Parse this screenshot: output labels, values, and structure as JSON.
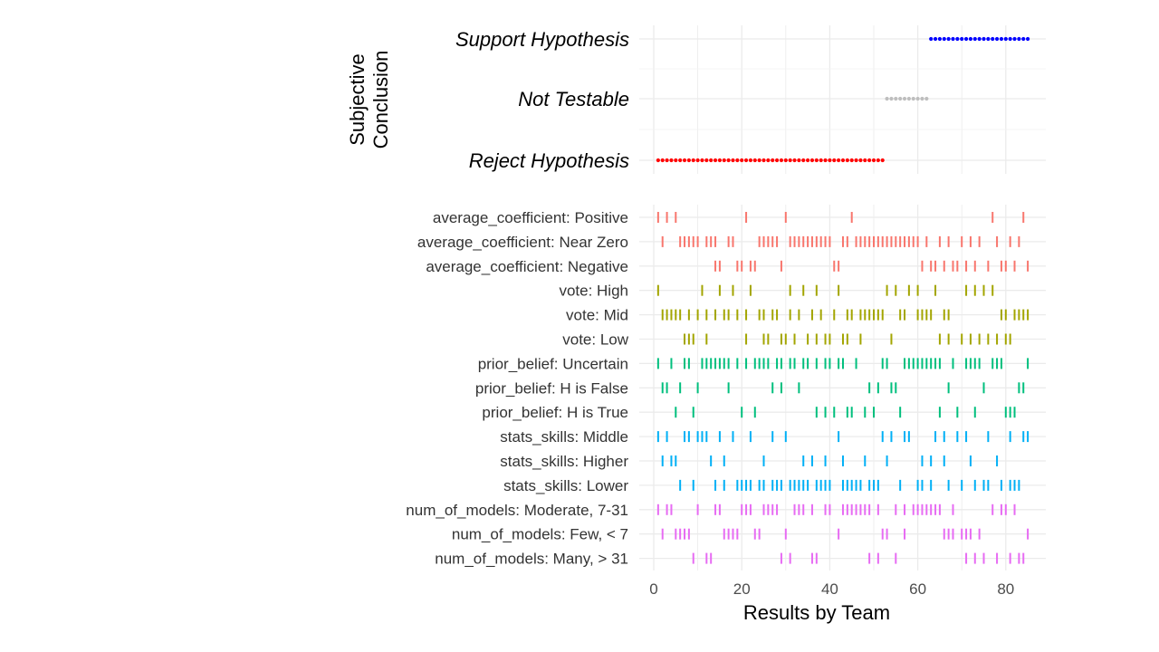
{
  "chart_data": [
    {
      "type": "scatter",
      "title": "",
      "ylabel_lines": [
        "Subjective",
        "Conclusion"
      ],
      "categories": [
        "Support Hypothesis",
        "Not Testable",
        "Reject Hypothesis"
      ],
      "series": [
        {
          "category": "Support Hypothesis",
          "color": "#0000ff",
          "x_range": [
            63,
            85
          ]
        },
        {
          "category": "Not Testable",
          "color": "#bebebe",
          "x_range": [
            53,
            62
          ]
        },
        {
          "category": "Reject Hypothesis",
          "color": "#ff0000",
          "x_range": [
            1,
            52
          ]
        }
      ],
      "xlim": [
        -3,
        89
      ],
      "grid": true
    },
    {
      "type": "scatter",
      "marker": "tick",
      "xlabel": "Results by Team",
      "x_ticks": [
        0,
        20,
        40,
        60,
        80
      ],
      "xlim": [
        -3,
        89
      ],
      "grid": true,
      "rows": [
        {
          "label": "average_coefficient: Positive",
          "color": "#f8766d",
          "x": [
            1,
            3,
            5,
            21,
            30,
            45,
            77,
            84
          ]
        },
        {
          "label": "average_coefficient: Near Zero",
          "color": "#f8766d",
          "x": [
            2,
            6,
            7,
            8,
            9,
            10,
            12,
            13,
            14,
            17,
            18,
            24,
            25,
            26,
            27,
            28,
            31,
            32,
            33,
            34,
            35,
            36,
            37,
            38,
            39,
            40,
            43,
            44,
            46,
            47,
            48,
            49,
            50,
            51,
            52,
            53,
            54,
            55,
            56,
            57,
            58,
            59,
            60,
            62,
            65,
            67,
            70,
            72,
            74,
            78,
            81,
            83
          ]
        },
        {
          "label": "average_coefficient: Negative",
          "color": "#f8766d",
          "x": [
            14,
            15,
            19,
            20,
            22,
            23,
            29,
            41,
            42,
            61,
            63,
            64,
            66,
            68,
            69,
            71,
            73,
            76,
            79,
            80,
            82,
            85
          ]
        },
        {
          "label": "vote: High",
          "color": "#a3a500",
          "x": [
            1,
            11,
            15,
            18,
            22,
            31,
            34,
            37,
            42,
            53,
            55,
            58,
            60,
            64,
            71,
            73,
            75,
            77
          ]
        },
        {
          "label": "vote: Mid",
          "color": "#a3a500",
          "x": [
            2,
            3,
            4,
            5,
            6,
            8,
            10,
            12,
            14,
            16,
            17,
            19,
            21,
            24,
            25,
            27,
            28,
            31,
            33,
            36,
            38,
            41,
            44,
            45,
            47,
            48,
            49,
            50,
            51,
            52,
            56,
            57,
            60,
            61,
            62,
            63,
            66,
            67,
            79,
            80,
            82,
            83,
            84,
            85
          ]
        },
        {
          "label": "vote: Low",
          "color": "#a3a500",
          "x": [
            7,
            8,
            9,
            12,
            21,
            25,
            26,
            29,
            30,
            32,
            35,
            37,
            39,
            40,
            43,
            44,
            47,
            54,
            65,
            67,
            70,
            72,
            74,
            76,
            78,
            80,
            81
          ]
        },
        {
          "label": "prior_belief: Uncertain",
          "color": "#00bf7d",
          "x": [
            1,
            4,
            7,
            8,
            11,
            12,
            13,
            14,
            15,
            16,
            17,
            19,
            21,
            23,
            24,
            25,
            26,
            28,
            29,
            31,
            32,
            34,
            35,
            37,
            39,
            40,
            42,
            43,
            46,
            52,
            53,
            57,
            58,
            59,
            60,
            61,
            62,
            63,
            64,
            65,
            68,
            71,
            72,
            73,
            74,
            77,
            78,
            79,
            85
          ]
        },
        {
          "label": "prior_belief: H is False",
          "color": "#00bf7d",
          "x": [
            2,
            3,
            6,
            10,
            17,
            27,
            29,
            33,
            49,
            51,
            54,
            55,
            67,
            75,
            83,
            84
          ]
        },
        {
          "label": "prior_belief: H is True",
          "color": "#00bf7d",
          "x": [
            5,
            9,
            20,
            23,
            37,
            39,
            41,
            44,
            45,
            48,
            50,
            56,
            65,
            69,
            73,
            80,
            81,
            82
          ]
        },
        {
          "label": "stats_skills: Middle",
          "color": "#00b0f6",
          "x": [
            1,
            3,
            7,
            8,
            10,
            11,
            12,
            15,
            18,
            22,
            27,
            30,
            42,
            52,
            54,
            57,
            58,
            64,
            66,
            69,
            71,
            76,
            81,
            84,
            85
          ]
        },
        {
          "label": "stats_skills: Higher",
          "color": "#00b0f6",
          "x": [
            2,
            4,
            5,
            13,
            16,
            25,
            34,
            36,
            39,
            43,
            48,
            53,
            61,
            63,
            66,
            72,
            78
          ]
        },
        {
          "label": "stats_skills: Lower",
          "color": "#00b0f6",
          "x": [
            6,
            9,
            14,
            16,
            19,
            20,
            21,
            22,
            24,
            25,
            27,
            28,
            29,
            31,
            32,
            33,
            34,
            35,
            37,
            38,
            39,
            40,
            43,
            44,
            45,
            46,
            47,
            49,
            50,
            51,
            56,
            60,
            61,
            63,
            67,
            70,
            73,
            75,
            76,
            79,
            81,
            82,
            83
          ]
        },
        {
          "label": "num_of_models: Moderate, 7-31",
          "color": "#e76bf3",
          "x": [
            1,
            3,
            4,
            10,
            14,
            15,
            20,
            21,
            22,
            25,
            26,
            27,
            28,
            32,
            33,
            34,
            36,
            39,
            40,
            43,
            44,
            45,
            46,
            47,
            48,
            49,
            51,
            55,
            57,
            59,
            60,
            61,
            62,
            63,
            64,
            65,
            68,
            77,
            79,
            80,
            82
          ]
        },
        {
          "label": "num_of_models: Few, < 7",
          "color": "#e76bf3",
          "x": [
            2,
            5,
            6,
            7,
            8,
            16,
            17,
            18,
            19,
            23,
            24,
            30,
            42,
            52,
            53,
            57,
            66,
            67,
            68,
            70,
            71,
            72,
            74,
            85
          ]
        },
        {
          "label": "num_of_models: Many, > 31",
          "color": "#e76bf3",
          "x": [
            9,
            12,
            13,
            29,
            31,
            36,
            37,
            49,
            51,
            55,
            71,
            73,
            75,
            78,
            81,
            83,
            84
          ]
        }
      ]
    }
  ]
}
